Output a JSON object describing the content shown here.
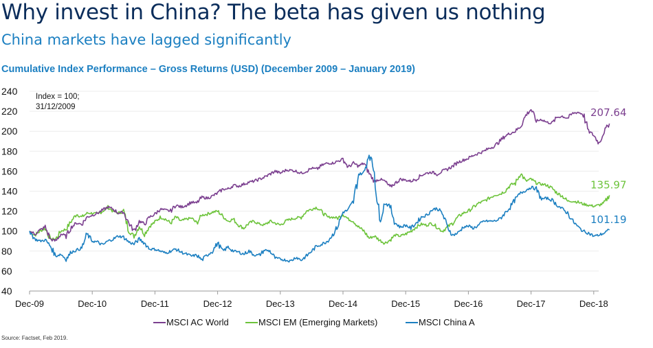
{
  "header": {
    "title": "Why invest in China? The beta has given us nothing",
    "subtitle": "China markets have lagged significantly"
  },
  "source": "Source: Factset, Feb 2019.",
  "chart_data": {
    "type": "line",
    "title": "Cumulative Index Performance – Gross Returns (USD) (December 2009 – January 2019)",
    "xlabel": "",
    "ylabel": "",
    "ylim": [
      40,
      240
    ],
    "yticks": [
      "240",
      "220",
      "200",
      "180",
      "160",
      "140",
      "120",
      "100",
      "80",
      "60",
      "40"
    ],
    "ytick_values": [
      240,
      220,
      200,
      180,
      160,
      140,
      120,
      100,
      80,
      60,
      40
    ],
    "xticks": [
      "Dec-09",
      "Dec-10",
      "Dec-11",
      "Dec-12",
      "Dec-13",
      "Dec-14",
      "Dec-15",
      "Dec-16",
      "Dec-17",
      "Dec-18"
    ],
    "x_range_years": [
      0,
      9.08
    ],
    "grid": true,
    "annotation": [
      "Index = 100;",
      "31/12/2009"
    ],
    "legend_position": "bottom",
    "x_step_months": 1,
    "series": [
      {
        "name": "MSCI AC World",
        "color": "#7b3f8f",
        "end_label": "207.64",
        "values": [
          100,
          97,
          101,
          104,
          92,
          90,
          97,
          95,
          104,
          108,
          107,
          114,
          116,
          118,
          121,
          124,
          122,
          118,
          119,
          108,
          100,
          110,
          107,
          114,
          117,
          122,
          121,
          120,
          126,
          124,
          126,
          129,
          128,
          134,
          133,
          135,
          138,
          142,
          142,
          146,
          145,
          147,
          149,
          150,
          152,
          154,
          157,
          160,
          158,
          161,
          161,
          160,
          158,
          160,
          163,
          162,
          166,
          168,
          168,
          170,
          172,
          164,
          168,
          165,
          168,
          158,
          150,
          152,
          150,
          144,
          148,
          152,
          151,
          150,
          152,
          156,
          158,
          159,
          157,
          160,
          162,
          165,
          169,
          171,
          173,
          176,
          178,
          180,
          183,
          185,
          190,
          195,
          198,
          200,
          205,
          216,
          222,
          210,
          212,
          209,
          208,
          214,
          215,
          213,
          218,
          219,
          217,
          200,
          196,
          188,
          200,
          207.64
        ]
      },
      {
        "name": "MSCI EM (Emerging Markets)",
        "color": "#6cc33a",
        "end_label": "135.97",
        "values": [
          100,
          96,
          100,
          103,
          92,
          92,
          100,
          102,
          110,
          117,
          114,
          118,
          118,
          117,
          120,
          124,
          120,
          118,
          120,
          100,
          95,
          105,
          97,
          105,
          109,
          114,
          112,
          108,
          114,
          110,
          112,
          113,
          108,
          116,
          117,
          119,
          120,
          115,
          110,
          112,
          106,
          103,
          108,
          110,
          107,
          106,
          110,
          108,
          106,
          110,
          112,
          113,
          114,
          120,
          122,
          124,
          119,
          114,
          114,
          113,
          117,
          112,
          110,
          104,
          100,
          93,
          95,
          91,
          88,
          91,
          96,
          95,
          97,
          100,
          104,
          107,
          106,
          108,
          104,
          100,
          104,
          108,
          114,
          118,
          120,
          124,
          128,
          130,
          133,
          136,
          137,
          140,
          146,
          148,
          158,
          150,
          152,
          148,
          147,
          146,
          143,
          138,
          135,
          130,
          130,
          129,
          127,
          126,
          125,
          126,
          128,
          135.97
        ]
      },
      {
        "name": "MSCI China A",
        "color": "#1b7fc1",
        "end_label": "101.19",
        "values": [
          100,
          92,
          90,
          91,
          85,
          75,
          77,
          72,
          79,
          81,
          83,
          97,
          90,
          89,
          86,
          90,
          92,
          95,
          94,
          89,
          87,
          92,
          88,
          82,
          82,
          80,
          78,
          80,
          82,
          79,
          77,
          75,
          76,
          71,
          76,
          80,
          88,
          80,
          84,
          80,
          79,
          77,
          80,
          76,
          76,
          81,
          80,
          73,
          72,
          71,
          70,
          74,
          71,
          75,
          80,
          85,
          87,
          90,
          96,
          105,
          119,
          121,
          130,
          157,
          158,
          178,
          160,
          110,
          128,
          125,
          108,
          104,
          106,
          103,
          108,
          114,
          116,
          121,
          123,
          118,
          104,
          96,
          98,
          104,
          105,
          103,
          106,
          110,
          110,
          110,
          112,
          118,
          124,
          132,
          138,
          141,
          144,
          142,
          132,
          133,
          131,
          126,
          122,
          118,
          110,
          104,
          100,
          98,
          95,
          96,
          98,
          101.19
        ]
      }
    ]
  }
}
